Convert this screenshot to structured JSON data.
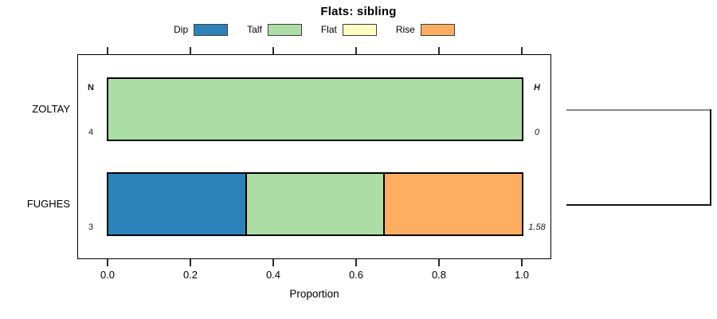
{
  "chart": {
    "title": "Flats: sibling",
    "x_axis": {
      "label": "Proportion",
      "ticks": [
        "0.0",
        "0.2",
        "0.4",
        "0.6",
        "0.8",
        "1.0"
      ]
    },
    "columns": {
      "n_header": "N",
      "h_header": "H"
    },
    "legend": [
      {
        "label": "Dip",
        "color": "#2B83BA"
      },
      {
        "label": "Talf",
        "color": "#ABDDA4"
      },
      {
        "label": "Flat",
        "color": "#FFFFBF"
      },
      {
        "label": "Rise",
        "color": "#FDAE61"
      }
    ],
    "rows": [
      {
        "label": "ZOLTAY",
        "n": "4",
        "h": "0",
        "segments": [
          {
            "category": "Talf",
            "proportion": 1,
            "color": "#ABDDA4"
          }
        ]
      },
      {
        "label": "FUGHES",
        "n": "3",
        "h": "1.58",
        "segments": [
          {
            "category": "Dip",
            "proportion": 0.3333,
            "color": "#2B83BA"
          },
          {
            "category": "Talf",
            "proportion": 0.3333,
            "color": "#ABDDA4"
          },
          {
            "category": "Rise",
            "proportion": 0.3334,
            "color": "#FDAE61"
          }
        ]
      }
    ],
    "dendrogram_colors": {
      "top_branch": "#8A8A8A",
      "bottom_branch": "#141414",
      "join": "#141414"
    }
  },
  "chart_data": {
    "type": "bar",
    "orientation": "horizontal",
    "stacked": true,
    "title": "Flats: sibling",
    "xlabel": "Proportion",
    "ylabel": "",
    "categories": [
      "ZOLTAY",
      "FUGHES"
    ],
    "series": [
      {
        "name": "Dip",
        "color": "#2B83BA",
        "values": [
          0,
          0.333
        ]
      },
      {
        "name": "Talf",
        "color": "#ABDDA4",
        "values": [
          1,
          0.333
        ]
      },
      {
        "name": "Flat",
        "color": "#FFFFBF",
        "values": [
          0,
          0
        ]
      },
      {
        "name": "Rise",
        "color": "#FDAE61",
        "values": [
          0,
          0.333
        ]
      }
    ],
    "xlim": [
      0,
      1
    ],
    "x_ticks": [
      0.0,
      0.2,
      0.4,
      0.6,
      0.8,
      1.0
    ],
    "annotations": {
      "N": [
        4,
        3
      ],
      "H": [
        0,
        1.58
      ]
    },
    "legend_position": "top",
    "grid": false,
    "notes": "Grey/black bracket (dendrogram) at right joins the ZOLTAY and FUGHES rows"
  }
}
